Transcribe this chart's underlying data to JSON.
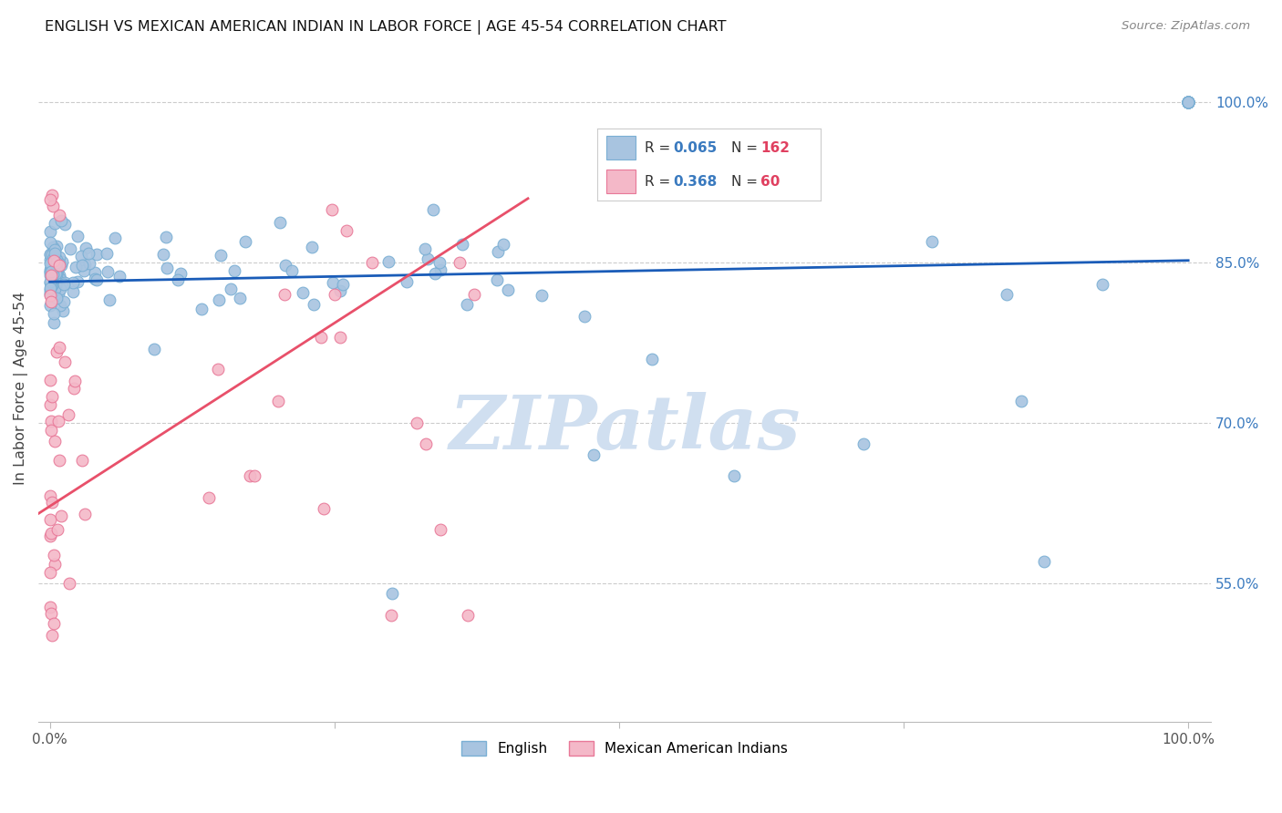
{
  "title": "ENGLISH VS MEXICAN AMERICAN INDIAN IN LABOR FORCE | AGE 45-54 CORRELATION CHART",
  "source": "Source: ZipAtlas.com",
  "ylabel": "In Labor Force | Age 45-54",
  "ytick_labels": [
    "100.0%",
    "85.0%",
    "70.0%",
    "55.0%"
  ],
  "ytick_values": [
    1.0,
    0.85,
    0.7,
    0.55
  ],
  "xlim": [
    -0.01,
    1.02
  ],
  "ylim": [
    0.42,
    1.045
  ],
  "english_color": "#a8c4e0",
  "english_edge": "#7aafd4",
  "mexican_color": "#f4b8c8",
  "mexican_edge": "#e87898",
  "trend_english_color": "#1a5cb8",
  "trend_mexican_color": "#e8506a",
  "R_english": 0.065,
  "N_english": 162,
  "R_mexican": 0.368,
  "N_mexican": 60,
  "legend_label_english": "English",
  "legend_label_mexican": "Mexican American Indians",
  "watermark": "ZIPatlas",
  "watermark_color": "#d0dff0",
  "eng_trend_x0": 0.0,
  "eng_trend_y0": 0.832,
  "eng_trend_x1": 1.0,
  "eng_trend_y1": 0.852,
  "mex_trend_x0": -0.01,
  "mex_trend_y0": 0.615,
  "mex_trend_x1": 0.42,
  "mex_trend_y1": 0.91
}
